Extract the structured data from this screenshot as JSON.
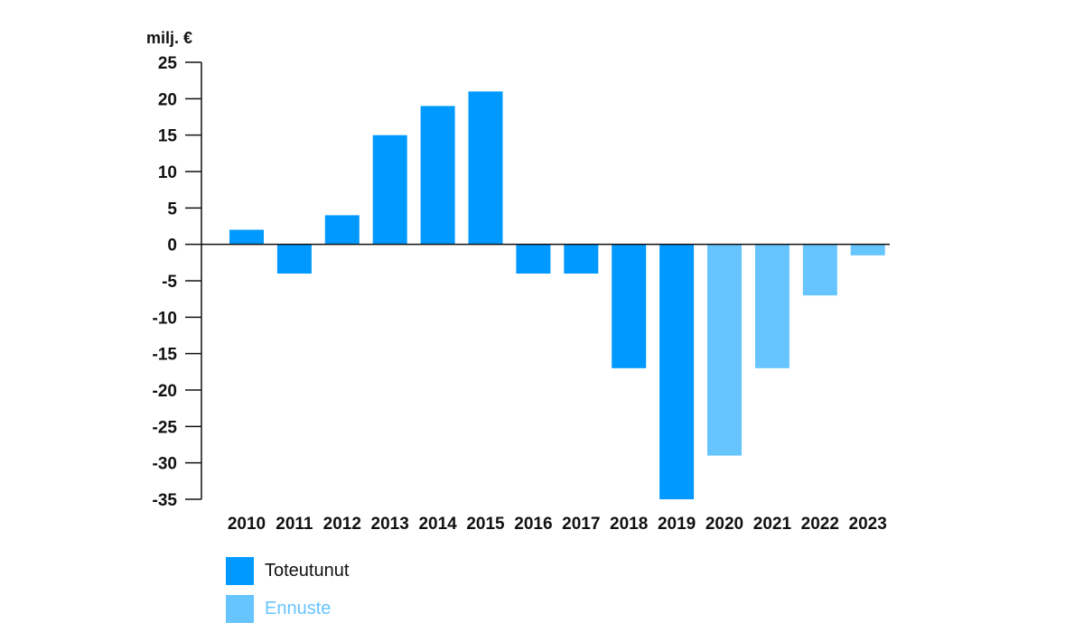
{
  "chart_data": {
    "type": "bar",
    "unit_label": "milj. €",
    "categories": [
      "2010",
      "2011",
      "2012",
      "2013",
      "2014",
      "2015",
      "2016",
      "2017",
      "2018",
      "2019",
      "2020",
      "2021",
      "2022",
      "2023"
    ],
    "values": [
      2,
      -4,
      4,
      15,
      19,
      21,
      -4,
      -4,
      -17,
      -35,
      -29,
      -17,
      -7,
      -1.5
    ],
    "status": [
      "actual",
      "actual",
      "actual",
      "actual",
      "actual",
      "actual",
      "actual",
      "actual",
      "actual",
      "actual",
      "forecast",
      "forecast",
      "forecast",
      "forecast"
    ],
    "ylim": [
      -35,
      25
    ],
    "yticks": [
      25,
      20,
      15,
      10,
      5,
      0,
      -5,
      -10,
      -15,
      -20,
      -25,
      -30,
      -35
    ],
    "grid": false,
    "legend_position": "bottom-left",
    "colors": {
      "actual": "#0099FF",
      "forecast": "#66C4FF"
    },
    "legend": [
      {
        "key": "actual",
        "label": "Toteutunut",
        "text_color": "#111111"
      },
      {
        "key": "forecast",
        "label": "Ennuste",
        "text_color": "#66C4FF"
      }
    ]
  }
}
